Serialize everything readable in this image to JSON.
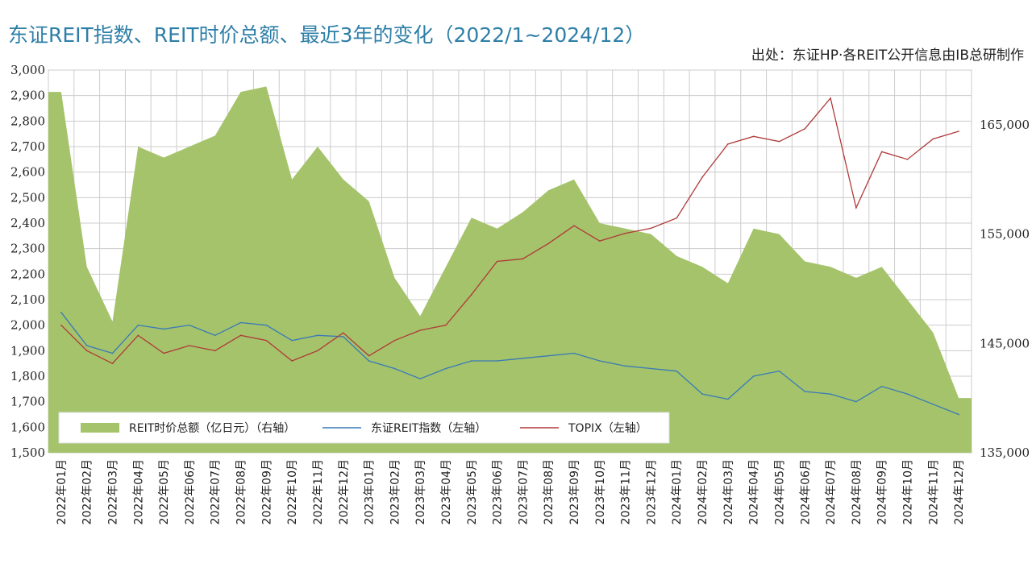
{
  "title": "东证REIT指数、REIT时价总额、最近3年的变化（2022/1~2024/12）",
  "source": "出处：东证HP·各REIT公开信息由IB总研制作",
  "colors": {
    "area": "#a4c36a",
    "index_line": "#3a7ab8",
    "topix_line": "#b03a3a",
    "grid": "#cccccc",
    "title": "#2e7fa8"
  },
  "chart_data": {
    "type": "area+line",
    "title": "东证REIT指数、REIT时价总额、最近3年的变化（2022/1~2024/12）",
    "left_axis": {
      "ylim": [
        1500,
        3000
      ],
      "ticks": [
        1500,
        1600,
        1700,
        1800,
        1900,
        2000,
        2100,
        2200,
        2300,
        2400,
        2500,
        2600,
        2700,
        2800,
        2900,
        3000
      ],
      "tick_labels": [
        "1,500",
        "1,600",
        "1,700",
        "1,800",
        "1,900",
        "2,000",
        "2,100",
        "2,200",
        "2,300",
        "2,400",
        "2,500",
        "2,600",
        "2,700",
        "2,800",
        "2,900",
        "3,000"
      ]
    },
    "right_axis": {
      "ylim": [
        135000,
        170000
      ],
      "ticks": [
        135000,
        145000,
        155000,
        165000
      ],
      "tick_labels": [
        "135,000",
        "145,000",
        "155,000",
        "165,000"
      ]
    },
    "categories": [
      "2022年01月",
      "2022年02月",
      "2022年03月",
      "2022年04月",
      "2022年05月",
      "2022年06月",
      "2022年07月",
      "2022年08月",
      "2022年09月",
      "2022年10月",
      "2022年11月",
      "2022年12月",
      "2023年01月",
      "2023年02月",
      "2023年03月",
      "2023年04月",
      "2023年05月",
      "2023年06月",
      "2023年07月",
      "2023年08月",
      "2023年09月",
      "2023年10月",
      "2023年11月",
      "2023年12月",
      "2024年01月",
      "2024年02月",
      "2024年03月",
      "2024年04月",
      "2024年05月",
      "2024年06月",
      "2024年07月",
      "2024年08月",
      "2024年09月",
      "2024年10月",
      "2024年11月",
      "2024年12月"
    ],
    "grid": true,
    "legend_position": "bottom-left",
    "series": [
      {
        "name": "REIT时价总额（亿日元）（右轴）",
        "kind": "area",
        "axis": "right",
        "values": [
          168000,
          152000,
          147000,
          163000,
          162000,
          163000,
          164000,
          168000,
          168500,
          160000,
          163000,
          160000,
          158000,
          151000,
          147500,
          152000,
          156500,
          155500,
          157000,
          159000,
          160000,
          156000,
          155500,
          155000,
          153000,
          152000,
          150500,
          155500,
          155000,
          152500,
          152000,
          151000,
          152000,
          149000,
          146000,
          140000
        ],
        "note_values_unit": ""
      },
      {
        "name": "东证REIT指数（左轴）",
        "kind": "line",
        "axis": "left",
        "values": [
          2050,
          1920,
          1890,
          2000,
          1985,
          2000,
          1960,
          2010,
          2000,
          1940,
          1960,
          1955,
          1860,
          1830,
          1790,
          1830,
          1860,
          1860,
          1870,
          1880,
          1890,
          1860,
          1840,
          1830,
          1820,
          1730,
          1710,
          1800,
          1820,
          1740,
          1730,
          1700,
          1760,
          1730,
          1690,
          1650
        ]
      },
      {
        "name": "TOPIX（左轴）",
        "kind": "line",
        "axis": "left",
        "values": [
          2000,
          1900,
          1850,
          1960,
          1890,
          1920,
          1900,
          1960,
          1940,
          1860,
          1900,
          1970,
          1880,
          1940,
          1980,
          2000,
          2120,
          2250,
          2260,
          2320,
          2390,
          2330,
          2360,
          2380,
          2420,
          2580,
          2710,
          2740,
          2720,
          2770,
          2890,
          2460,
          2680,
          2650,
          2730,
          2760
        ]
      }
    ]
  },
  "legend": [
    {
      "label": "REIT时价总额（亿日元）（右轴）",
      "type": "area"
    },
    {
      "label": "东证REIT指数（左轴）",
      "type": "line-blue"
    },
    {
      "label": "TOPIX（左轴）",
      "type": "line-red"
    }
  ]
}
